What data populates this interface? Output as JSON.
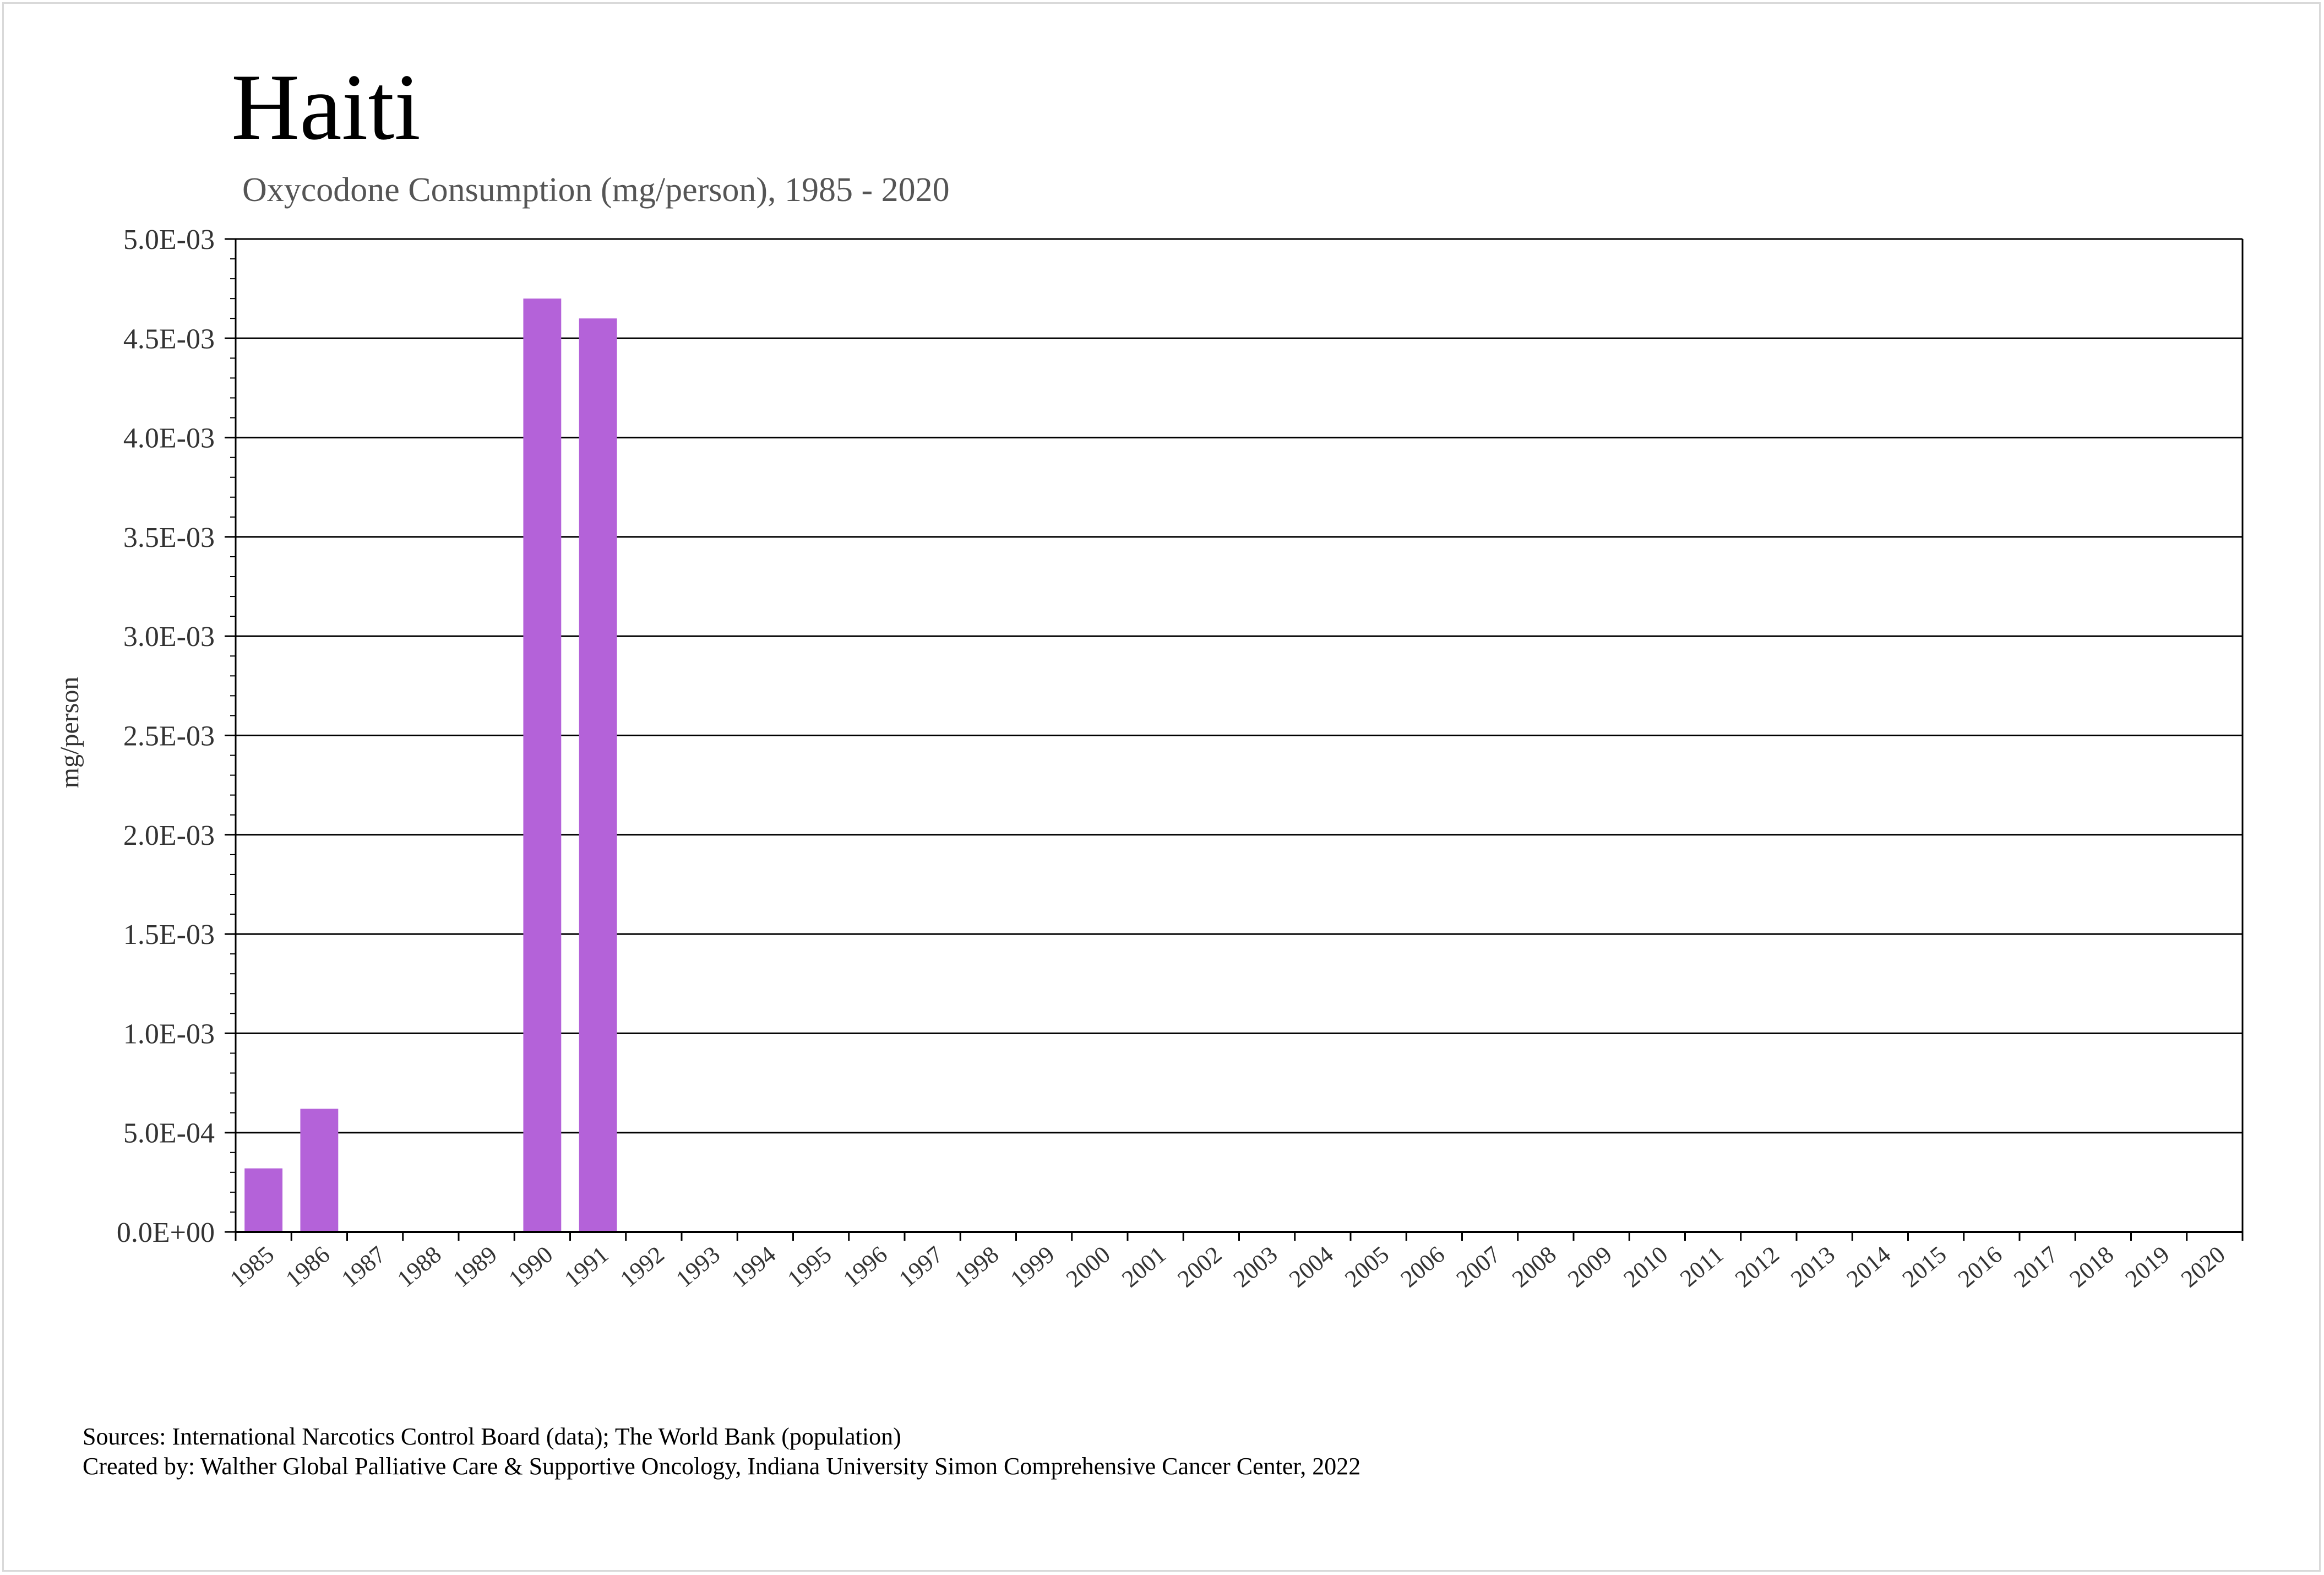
{
  "colors": {
    "bar": "#b462d9",
    "grid": "#000000",
    "text": "#000000",
    "muted": "#555555",
    "frame": "#d9d9d9"
  },
  "chart_data": {
    "type": "bar",
    "title": "Haiti",
    "subtitle": "Oxycodone Consumption (mg/person), 1985 - 2020",
    "xlabel": "",
    "ylabel": "mg/person",
    "ylim": [
      0,
      0.005
    ],
    "y_ticks": [
      0,
      0.0005,
      0.001,
      0.0015,
      0.002,
      0.0025,
      0.003,
      0.0035,
      0.004,
      0.0045,
      0.005
    ],
    "y_tick_labels": [
      "0.0E+00",
      "5.0E-04",
      "1.0E-03",
      "1.5E-03",
      "2.0E-03",
      "2.5E-03",
      "3.0E-03",
      "3.5E-03",
      "4.0E-03",
      "4.5E-03",
      "5.0E-03"
    ],
    "grid": true,
    "categories": [
      "1985",
      "1986",
      "1987",
      "1988",
      "1989",
      "1990",
      "1991",
      "1992",
      "1993",
      "1994",
      "1995",
      "1996",
      "1997",
      "1998",
      "1999",
      "2000",
      "2001",
      "2002",
      "2003",
      "2004",
      "2005",
      "2006",
      "2007",
      "2008",
      "2009",
      "2010",
      "2011",
      "2012",
      "2013",
      "2014",
      "2015",
      "2016",
      "2017",
      "2018",
      "2019",
      "2020"
    ],
    "values": [
      0.00032,
      0.00062,
      0,
      0,
      0,
      0.0047,
      0.0046,
      0,
      0,
      0,
      0,
      0,
      0,
      0,
      0,
      0,
      0,
      0,
      0,
      0,
      0,
      0,
      0,
      0,
      0,
      0,
      0,
      0,
      0,
      0,
      0,
      0,
      0,
      0,
      0,
      0
    ]
  },
  "footer": {
    "sources": "Sources: International Narcotics Control Board (data); The World Bank (population)",
    "created_by": "Created by: Walther Global Palliative Care & Supportive Oncology, Indiana University Simon Comprehensive Cancer Center, 2022"
  }
}
